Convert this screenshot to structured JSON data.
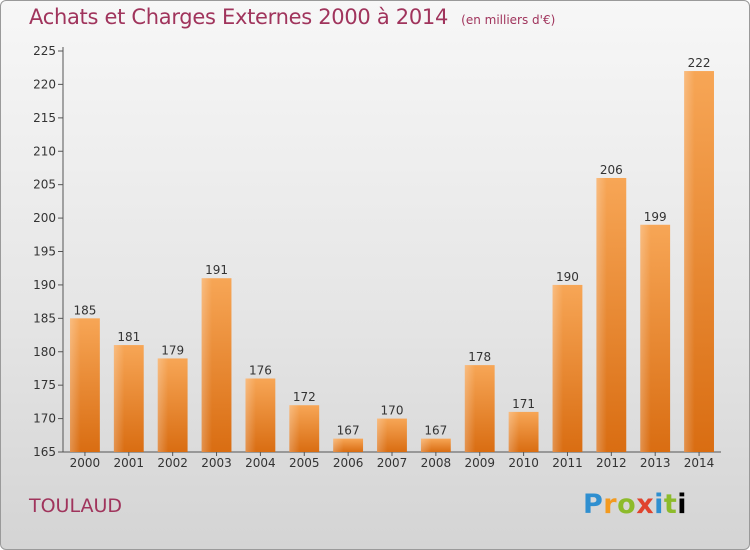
{
  "chart_data": {
    "type": "bar",
    "title": "Achats et Charges Externes 2000 à 2014",
    "subtitle": "(en milliers d'€)",
    "xlabel": "",
    "ylabel": "",
    "categories": [
      "2000",
      "2001",
      "2002",
      "2003",
      "2004",
      "2005",
      "2006",
      "2007",
      "2008",
      "2009",
      "2010",
      "2011",
      "2012",
      "2013",
      "2014"
    ],
    "values": [
      185,
      181,
      179,
      191,
      176,
      172,
      167,
      170,
      167,
      178,
      171,
      190,
      206,
      199,
      222
    ],
    "ylim": [
      165,
      225
    ],
    "yticks": [
      165,
      170,
      175,
      180,
      185,
      190,
      195,
      200,
      205,
      210,
      215,
      220,
      225
    ],
    "grid": false,
    "bar_color": "#f28a2c"
  },
  "footer": {
    "commune": "TOULAUD",
    "logo": "Proxiti"
  }
}
